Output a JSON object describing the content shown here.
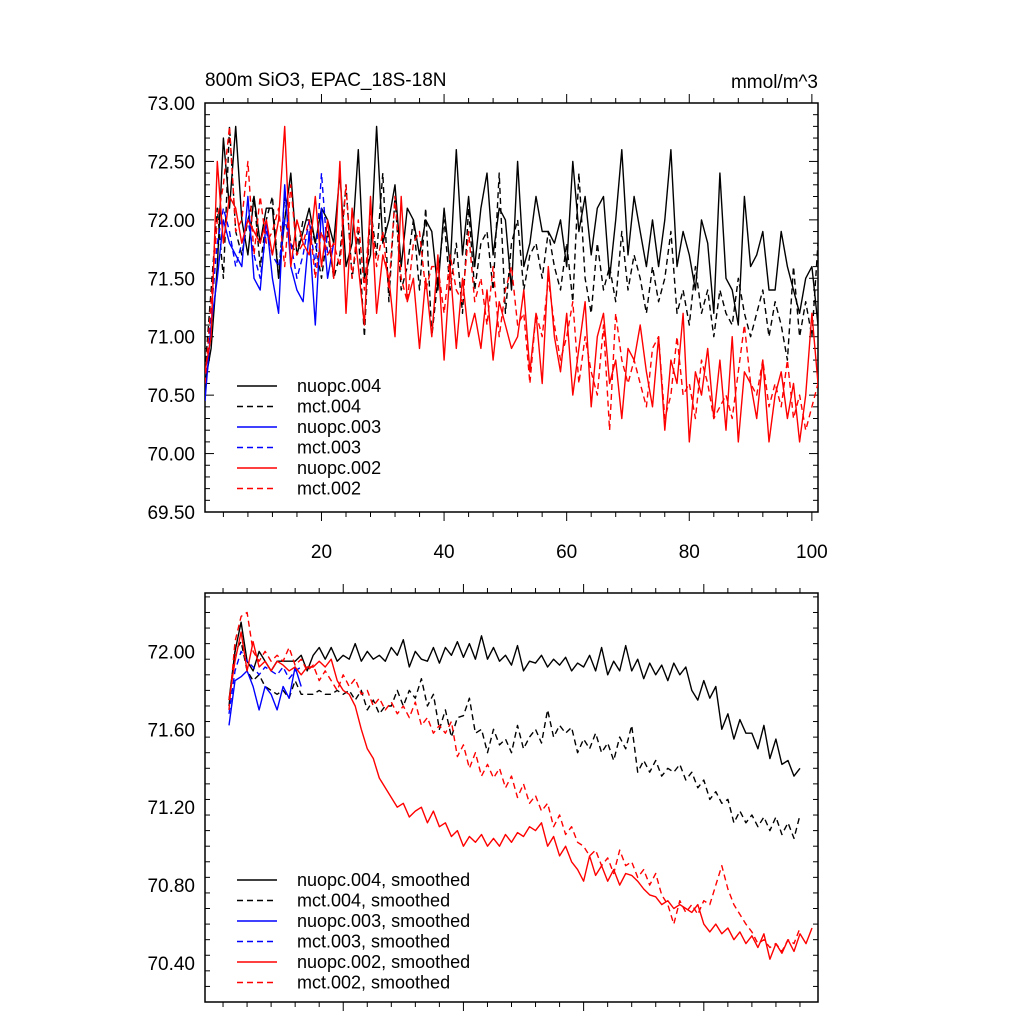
{
  "colors": {
    "black": "#000000",
    "blue": "#0000ff",
    "red": "#ff0000"
  },
  "chart_data": [
    {
      "type": "line",
      "title": "800m SiO3, EPAC_18S-18N",
      "units": "mmol/m^3",
      "xlabel": "",
      "ylabel": "",
      "xlim": [
        1,
        101
      ],
      "ylim": [
        69.5,
        73.0
      ],
      "y_ticks": [
        69.5,
        70.0,
        70.5,
        71.0,
        71.5,
        72.0,
        72.5,
        73.0
      ],
      "y_tick_labels": [
        "69.50",
        "70.00",
        "70.50",
        "71.00",
        "71.50",
        "72.00",
        "72.50",
        "73.00"
      ],
      "x_ticks": [
        20,
        40,
        60,
        80,
        100
      ],
      "x_tick_labels": [
        "20",
        "40",
        "60",
        "80",
        "100"
      ],
      "legend_position": "bottom-left",
      "series": [
        {
          "name": "nuopc.004",
          "color": "#000000",
          "dash": "solid",
          "x_start": 1,
          "values": [
            70.6,
            70.9,
            71.6,
            72.7,
            72.1,
            72.8,
            72.0,
            71.7,
            72.2,
            71.8,
            72.1,
            72.1,
            71.5,
            72.0,
            72.4,
            71.7,
            71.9,
            72.1,
            71.8,
            72.1,
            72.0,
            71.8,
            72.4,
            71.6,
            71.8,
            72.6,
            71.5,
            71.7,
            72.8,
            71.8,
            72.0,
            72.3,
            71.6,
            72.1,
            72.0,
            71.7,
            72.0,
            71.9,
            71.4,
            72.1,
            71.6,
            72.6,
            71.7,
            72.2,
            71.6,
            72.1,
            72.4,
            71.7,
            72.1,
            72.0,
            71.4,
            72.5,
            71.6,
            71.8,
            72.2,
            71.9,
            71.9,
            71.8,
            72.0,
            71.6,
            72.5,
            71.9,
            72.2,
            71.7,
            72.1,
            72.2,
            71.5,
            72.0,
            72.6,
            71.7,
            72.2,
            71.9,
            71.6,
            72.0,
            71.6,
            72.0,
            72.6,
            71.6,
            71.9,
            71.7,
            71.4,
            72.0,
            71.8,
            71.2,
            72.4,
            71.5,
            71.4,
            71.1,
            72.2,
            71.6,
            71.7,
            71.9,
            71.4,
            71.4,
            71.9,
            71.6,
            71.4,
            71.2,
            71.5,
            71.6,
            71.1,
            71.5
          ]
        },
        {
          "name": "mct.004",
          "color": "#000000",
          "dash": "dashed",
          "x_start": 1,
          "values": [
            70.7,
            71.4,
            72.1,
            71.5,
            72.8,
            71.9,
            71.7,
            72.0,
            72.2,
            71.6,
            72.0,
            72.2,
            71.5,
            72.2,
            71.8,
            71.7,
            72.0,
            72.0,
            71.8,
            71.5,
            71.9,
            71.5,
            71.7,
            72.3,
            71.5,
            71.9,
            71.0,
            72.1,
            71.7,
            72.4,
            71.3,
            72.2,
            71.4,
            71.6,
            72.0,
            71.4,
            72.1,
            71.0,
            71.5,
            72.0,
            71.4,
            71.8,
            71.2,
            72.1,
            71.4,
            71.8,
            71.9,
            71.4,
            72.4,
            71.2,
            71.8,
            72.0,
            71.4,
            71.7,
            71.8,
            71.5,
            71.9,
            71.6,
            71.4,
            71.8,
            71.3,
            72.4,
            71.5,
            71.2,
            71.8,
            71.4,
            71.6,
            71.3,
            71.9,
            71.4,
            71.7,
            71.5,
            71.2,
            71.6,
            71.3,
            71.5,
            71.9,
            71.2,
            71.4,
            71.1,
            71.6,
            71.2,
            71.4,
            71.0,
            71.4,
            71.2,
            71.1,
            71.5,
            71.2,
            71.0,
            71.2,
            71.4,
            71.0,
            71.3,
            71.1,
            70.8,
            71.6,
            71.0,
            71.3,
            71.0,
            71.8
          ]
        },
        {
          "name": "nuopc.003",
          "color": "#0000ff",
          "dash": "solid",
          "x_start": 1,
          "values": [
            70.45,
            71.1,
            71.5,
            72.0,
            71.8,
            71.7,
            71.6,
            72.2,
            71.5,
            71.4,
            72.0,
            71.5,
            71.2,
            72.3,
            71.6,
            71.4,
            71.3,
            71.9,
            71.1,
            72.1,
            71.5,
            71.8
          ]
        },
        {
          "name": "mct.003",
          "color": "#0000ff",
          "dash": "dashed",
          "x_start": 1,
          "values": [
            70.6,
            71.2,
            71.8,
            72.1,
            71.9,
            71.6,
            71.8,
            72.0,
            71.7,
            71.5,
            71.9,
            71.7,
            71.6,
            72.0,
            71.8,
            71.5,
            71.7,
            72.0,
            71.6,
            72.4,
            71.7,
            71.8
          ]
        },
        {
          "name": "nuopc.002",
          "color": "#ff0000",
          "dash": "solid",
          "x_start": 1,
          "values": [
            70.7,
            71.0,
            72.5,
            71.8,
            72.2,
            72.1,
            71.8,
            72.0,
            71.9,
            71.8,
            72.0,
            71.7,
            72.0,
            72.8,
            71.6,
            72.0,
            71.8,
            71.7,
            72.2,
            71.6,
            72.0,
            71.5,
            72.5,
            71.2,
            72.1,
            71.6,
            71.1,
            72.2,
            71.2,
            71.7,
            71.5,
            71.0,
            72.2,
            71.3,
            71.5,
            70.9,
            71.5,
            71.0,
            71.7,
            70.8,
            71.6,
            70.9,
            71.5,
            71.0,
            71.2,
            70.9,
            71.4,
            70.8,
            71.3,
            71.1,
            70.9,
            71.0,
            71.4,
            70.7,
            71.2,
            70.6,
            71.6,
            71.0,
            70.7,
            71.2,
            70.5,
            70.9,
            71.3,
            70.4,
            71.0,
            71.2,
            70.6,
            70.8,
            70.3,
            70.9,
            70.8,
            71.1,
            70.7,
            70.4,
            71.0,
            70.2,
            70.8,
            70.6,
            71.2,
            70.1,
            70.7,
            70.5,
            70.9,
            70.3,
            70.8,
            70.2,
            71.0,
            70.1,
            70.7,
            70.6,
            70.3,
            70.8,
            70.1,
            70.5,
            70.7,
            70.3,
            70.6,
            70.1,
            70.5,
            71.2,
            70.6
          ]
        },
        {
          "name": "mct.002",
          "color": "#ff0000",
          "dash": "dashed",
          "x_start": 1,
          "values": [
            70.6,
            71.3,
            72.0,
            72.3,
            72.8,
            71.9,
            72.0,
            72.5,
            71.7,
            72.2,
            71.8,
            71.9,
            72.1,
            71.6,
            72.3,
            71.7,
            71.8,
            72.0,
            71.5,
            71.9,
            71.7,
            71.8,
            71.6,
            72.3,
            71.5,
            72.0,
            71.4,
            72.1,
            71.6,
            71.9,
            71.4,
            72.2,
            71.5,
            71.3,
            71.8,
            71.9,
            71.4,
            71.6,
            71.6,
            71.2,
            71.7,
            71.4,
            71.3,
            71.9,
            71.3,
            71.5,
            71.1,
            71.6,
            71.0,
            71.4,
            71.6,
            71.1,
            71.2,
            70.6,
            71.2,
            71.0,
            71.5,
            71.1,
            70.8,
            71.0,
            71.3,
            70.6,
            71.0,
            70.7,
            70.5,
            71.1,
            70.2,
            71.2,
            70.8,
            70.6,
            70.8,
            70.6,
            70.4,
            70.9,
            71.0,
            70.3,
            70.5,
            71.0,
            70.5,
            70.6,
            70.3,
            70.8,
            70.6,
            70.3,
            70.4,
            70.5,
            70.3,
            70.7,
            71.1,
            70.6,
            70.5,
            70.8,
            70.4,
            70.6,
            70.4,
            70.8,
            70.3,
            70.5,
            70.2,
            70.4,
            70.6
          ]
        }
      ],
      "legend": [
        "nuopc.004",
        "mct.004",
        "nuopc.003",
        "mct.003",
        "nuopc.002",
        "mct.002"
      ]
    },
    {
      "type": "line",
      "title": "",
      "xlabel": "",
      "ylabel": "",
      "xlim": [
        -3,
        99
      ],
      "ylim": [
        70.2,
        72.3
      ],
      "y_ticks": [
        70.4,
        70.8,
        71.2,
        71.6,
        72.0
      ],
      "y_tick_labels": [
        "70.40",
        "70.80",
        "71.20",
        "71.60",
        "72.00"
      ],
      "x_ticks": [
        20,
        40,
        60,
        80
      ],
      "x_tick_labels": [],
      "legend_position": "bottom-left",
      "series": [
        {
          "name": "nuopc.004, smoothed",
          "color": "#000000",
          "dash": "solid",
          "x_start": 1,
          "values": [
            71.75,
            72.0,
            72.15,
            71.95,
            71.9,
            72.0,
            71.95,
            71.9,
            71.95,
            71.95,
            71.95,
            71.95,
            71.98,
            71.9,
            71.98,
            72.02,
            71.96,
            72.02,
            71.95,
            71.98,
            71.96,
            72.04,
            71.95,
            72.0,
            71.96,
            71.98,
            71.95,
            72.02,
            71.98,
            72.06,
            71.92,
            72.0,
            71.96,
            71.95,
            72.02,
            71.94,
            72.02,
            71.98,
            72.05,
            71.97,
            72.04,
            71.96,
            72.08,
            71.96,
            72.02,
            71.95,
            71.98,
            71.93,
            72.03,
            71.9,
            71.95,
            71.94,
            71.98,
            71.92,
            71.96,
            71.93,
            71.97,
            71.9,
            71.94,
            71.92,
            71.98,
            71.9,
            72.02,
            71.88,
            71.95,
            71.9,
            72.03,
            71.9,
            71.96,
            71.86,
            71.94,
            71.88,
            71.93,
            71.85,
            71.94,
            71.88,
            71.92,
            71.8,
            71.75,
            71.85,
            71.76,
            71.82,
            71.6,
            71.68,
            71.55,
            71.65,
            71.58,
            71.58,
            71.5,
            71.62,
            71.45,
            71.55,
            71.42,
            71.44,
            71.36,
            71.4
          ]
        },
        {
          "name": "mct.004, smoothed",
          "color": "#000000",
          "dash": "dashed",
          "x_start": 1,
          "values": [
            71.72,
            72.0,
            72.05,
            71.9,
            71.85,
            71.88,
            71.82,
            71.8,
            71.78,
            71.8,
            71.76,
            71.85,
            71.78,
            71.78,
            71.78,
            71.8,
            71.78,
            71.78,
            71.8,
            71.78,
            71.8,
            71.75,
            71.8,
            71.7,
            71.75,
            71.68,
            71.72,
            71.72,
            71.8,
            71.72,
            71.8,
            71.76,
            71.86,
            71.72,
            71.78,
            71.6,
            71.7,
            71.56,
            71.66,
            71.67,
            71.76,
            71.58,
            71.6,
            71.48,
            71.6,
            71.52,
            71.55,
            71.48,
            71.62,
            71.5,
            71.56,
            71.6,
            71.53,
            71.7,
            71.56,
            71.62,
            71.58,
            71.61,
            71.48,
            71.55,
            71.5,
            71.58,
            71.48,
            71.53,
            71.44,
            71.56,
            71.5,
            71.62,
            71.38,
            71.44,
            71.38,
            71.44,
            71.36,
            71.4,
            71.38,
            71.42,
            71.34,
            71.38,
            71.3,
            71.34,
            71.24,
            71.28,
            71.22,
            71.24,
            71.12,
            71.18,
            71.12,
            71.16,
            71.1,
            71.15,
            71.08,
            71.15,
            71.06,
            71.12,
            71.04,
            71.16
          ]
        },
        {
          "name": "nuopc.003, smoothed",
          "color": "#0000ff",
          "dash": "solid",
          "x_start": 1,
          "values": [
            71.62,
            71.85,
            71.87,
            71.9,
            71.82,
            71.7,
            71.82,
            71.78,
            71.7,
            71.82,
            71.76,
            71.92,
            71.82
          ]
        },
        {
          "name": "mct.003, smoothed",
          "color": "#0000ff",
          "dash": "dashed",
          "x_start": 1,
          "values": [
            71.68,
            71.9,
            72.0,
            71.95,
            71.92,
            71.88,
            71.92,
            71.9,
            71.88,
            71.92,
            71.86,
            71.9,
            71.92
          ]
        },
        {
          "name": "nuopc.002, smoothed",
          "color": "#ff0000",
          "dash": "solid",
          "x_start": 1,
          "values": [
            71.75,
            71.95,
            72.1,
            71.9,
            72.05,
            71.92,
            71.95,
            71.9,
            71.95,
            71.93,
            71.9,
            71.92,
            71.88,
            71.92,
            71.92,
            71.95,
            71.92,
            71.96,
            71.85,
            71.8,
            71.78,
            71.72,
            71.6,
            71.5,
            71.45,
            71.35,
            71.3,
            71.25,
            71.2,
            71.22,
            71.15,
            71.18,
            71.2,
            71.12,
            71.18,
            71.1,
            71.12,
            71.05,
            71.08,
            71.0,
            71.05,
            71.02,
            71.06,
            71.0,
            71.04,
            71.0,
            71.06,
            71.02,
            71.07,
            71.05,
            71.1,
            71.08,
            71.12,
            71.0,
            71.05,
            70.95,
            71.0,
            70.92,
            70.88,
            70.82,
            70.95,
            70.85,
            70.9,
            70.82,
            70.88,
            70.8,
            70.86,
            70.85,
            70.82,
            70.78,
            70.75,
            70.74,
            70.7,
            70.72,
            70.68,
            70.7,
            70.68,
            70.66,
            70.7,
            70.6,
            70.56,
            70.6,
            70.55,
            70.58,
            70.52,
            70.56,
            70.5,
            70.54,
            70.48,
            70.55,
            70.42,
            70.5,
            70.45,
            70.52,
            70.46,
            70.55,
            70.5,
            70.58
          ]
        },
        {
          "name": "mct.002, smoothed",
          "color": "#ff0000",
          "dash": "dashed",
          "x_start": 1,
          "values": [
            71.7,
            72.05,
            72.18,
            72.2,
            72.0,
            71.95,
            72.0,
            71.95,
            71.98,
            71.95,
            72.02,
            71.93,
            71.96,
            71.9,
            71.93,
            71.85,
            71.9,
            71.85,
            71.8,
            71.88,
            71.82,
            71.86,
            71.78,
            71.8,
            71.72,
            71.76,
            71.7,
            71.74,
            71.68,
            71.72,
            71.66,
            71.74,
            71.62,
            71.66,
            71.58,
            71.62,
            71.58,
            71.64,
            71.46,
            71.52,
            71.4,
            71.48,
            71.36,
            71.42,
            71.35,
            71.4,
            71.3,
            71.36,
            71.25,
            71.32,
            71.22,
            71.26,
            71.18,
            71.22,
            71.1,
            71.16,
            71.06,
            71.1,
            71.02,
            71.0,
            70.95,
            70.98,
            70.9,
            70.94,
            70.86,
            70.98,
            70.9,
            70.92,
            70.84,
            70.88,
            70.8,
            70.86,
            70.75,
            70.7,
            70.6,
            70.72,
            70.66,
            70.7,
            70.65,
            70.72,
            70.7,
            70.8,
            70.9,
            70.78,
            70.7,
            70.65,
            70.6,
            70.56,
            70.5,
            70.52,
            70.48,
            70.5,
            70.46,
            70.52,
            70.5,
            70.58
          ]
        }
      ],
      "legend": [
        "nuopc.004, smoothed",
        "mct.004, smoothed",
        "nuopc.003, smoothed",
        "mct.003, smoothed",
        "nuopc.002, smoothed",
        "mct.002, smoothed"
      ]
    }
  ]
}
